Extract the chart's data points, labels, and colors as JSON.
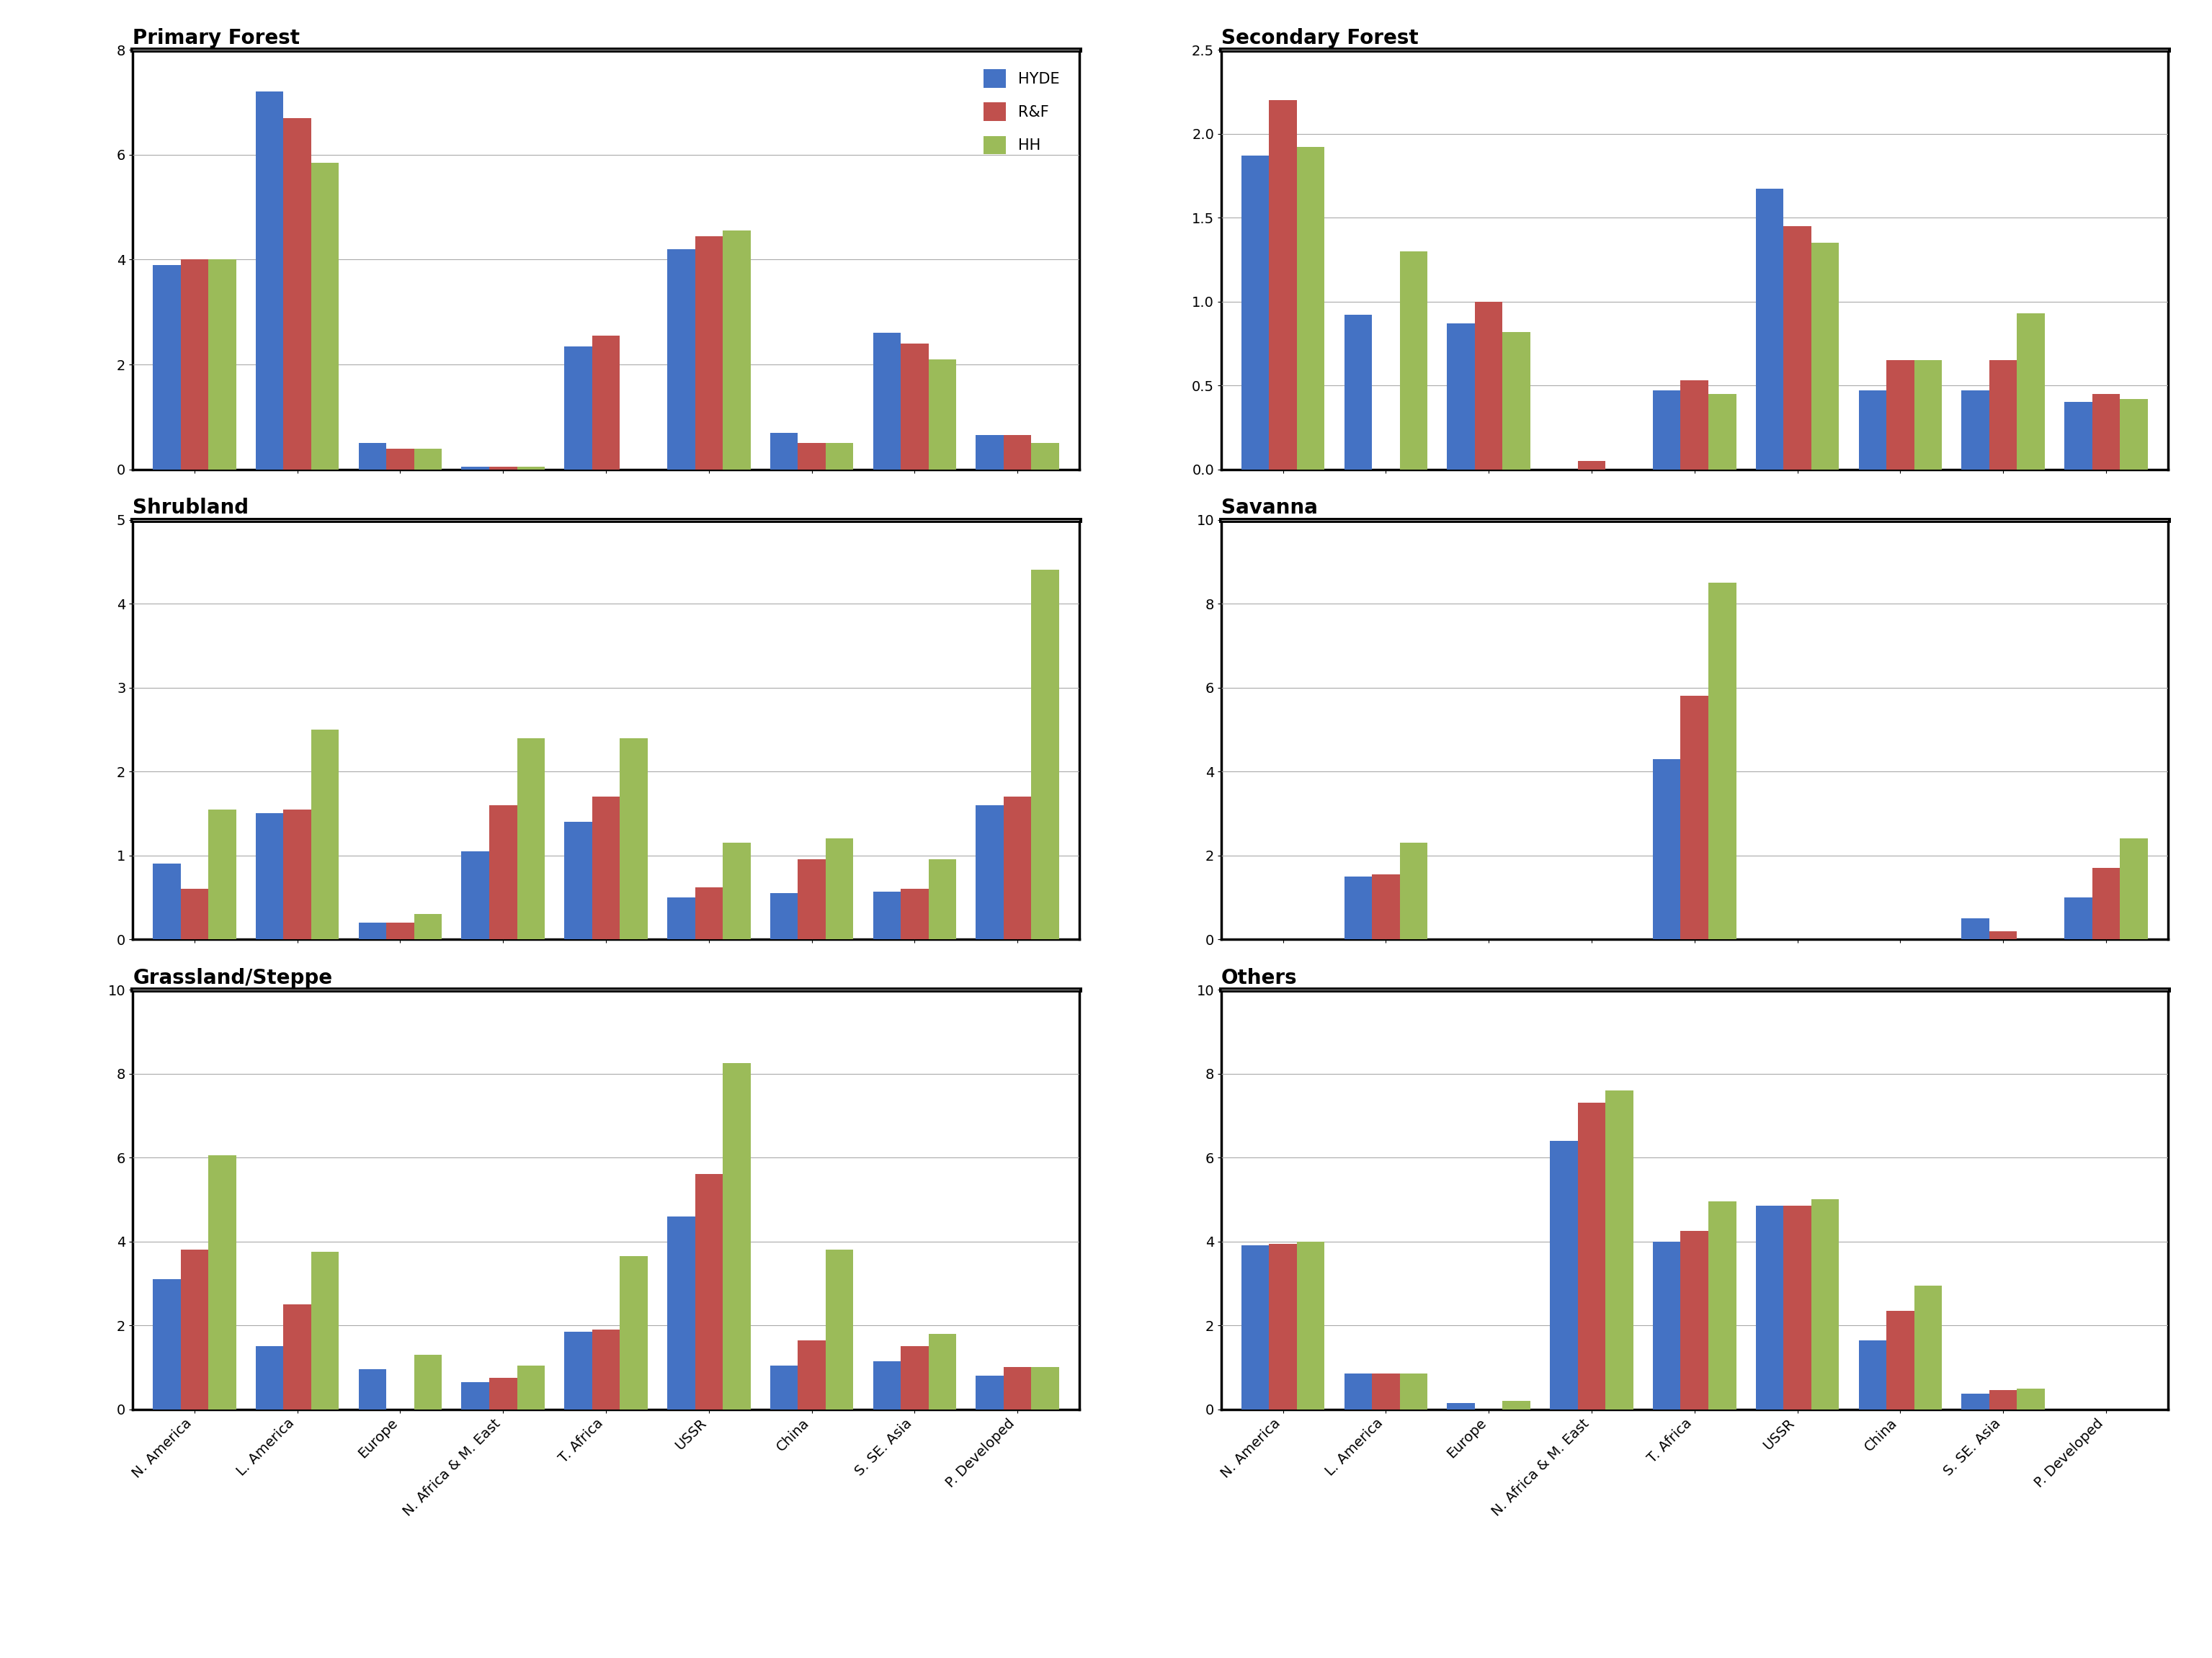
{
  "categories": [
    "N. America",
    "L. America",
    "Europe",
    "N. Africa & M. East",
    "T. Africa",
    "USSR",
    "China",
    "S. SE. Asia",
    "P. Developed"
  ],
  "legend_labels": [
    "HYDE",
    "R&F",
    "HH"
  ],
  "colors": [
    "#4472C4",
    "#C0504D",
    "#9BBB59"
  ],
  "subplots": [
    {
      "title": "Primary Forest",
      "ylim": [
        0,
        8
      ],
      "yticks": [
        0,
        2,
        4,
        6,
        8
      ],
      "show_xticks": false,
      "categories_used": 9,
      "data": {
        "HYDE": [
          3.9,
          7.2,
          0.5,
          0.05,
          2.35,
          4.2,
          0.7,
          2.6,
          0.65
        ],
        "R&F": [
          4.0,
          6.7,
          0.4,
          0.05,
          2.55,
          4.45,
          0.5,
          2.4,
          0.65
        ],
        "HH": [
          4.0,
          5.85,
          0.4,
          0.05,
          0.0,
          4.55,
          0.5,
          2.1,
          0.5
        ]
      }
    },
    {
      "title": "Secondary Forest",
      "ylim": [
        0,
        2.5
      ],
      "yticks": [
        0,
        0.5,
        1.0,
        1.5,
        2.0,
        2.5
      ],
      "show_xticks": false,
      "categories_used": 9,
      "data": {
        "HYDE": [
          1.87,
          0.92,
          0.87,
          0.0,
          0.47,
          1.67,
          0.47,
          0.47,
          0.4
        ],
        "R&F": [
          2.2,
          0.0,
          1.0,
          0.05,
          0.53,
          1.45,
          0.65,
          0.65,
          0.45
        ],
        "HH": [
          1.92,
          1.3,
          0.82,
          0.0,
          0.45,
          1.35,
          0.65,
          0.93,
          0.42
        ]
      }
    },
    {
      "title": "Shrubland",
      "ylim": [
        0,
        5
      ],
      "yticks": [
        0,
        1,
        2,
        3,
        4,
        5
      ],
      "show_xticks": false,
      "categories_used": 9,
      "data": {
        "HYDE": [
          0.9,
          1.5,
          0.2,
          1.05,
          1.4,
          0.5,
          0.55,
          0.57,
          1.6
        ],
        "R&F": [
          0.6,
          1.55,
          0.2,
          1.6,
          1.7,
          0.62,
          0.95,
          0.6,
          1.7
        ],
        "HH": [
          1.55,
          2.5,
          0.3,
          2.4,
          2.4,
          1.15,
          1.2,
          0.95,
          4.4
        ]
      }
    },
    {
      "title": "Savanna",
      "ylim": [
        0,
        10
      ],
      "yticks": [
        0,
        2,
        4,
        6,
        8,
        10
      ],
      "show_xticks": false,
      "categories_used": 9,
      "data": {
        "HYDE": [
          0.0,
          1.5,
          0.0,
          0.0,
          4.3,
          0.0,
          0.0,
          0.5,
          1.0
        ],
        "R&F": [
          0.0,
          1.55,
          0.0,
          0.0,
          5.8,
          0.0,
          0.0,
          0.2,
          1.7
        ],
        "HH": [
          0.0,
          2.3,
          0.0,
          0.0,
          8.5,
          0.0,
          0.0,
          0.0,
          2.4
        ]
      }
    },
    {
      "title": "Grassland/Steppe",
      "ylim": [
        0,
        10
      ],
      "yticks": [
        0,
        2,
        4,
        6,
        8,
        10
      ],
      "show_xticks": true,
      "categories_used": 9,
      "data": {
        "HYDE": [
          3.1,
          1.5,
          0.95,
          0.65,
          1.85,
          4.6,
          1.05,
          1.15,
          0.8
        ],
        "R&F": [
          3.8,
          2.5,
          0.0,
          0.75,
          1.9,
          5.6,
          1.65,
          1.5,
          1.0
        ],
        "HH": [
          6.05,
          3.75,
          1.3,
          1.05,
          3.65,
          8.25,
          3.8,
          1.8,
          1.0
        ]
      }
    },
    {
      "title": "Others",
      "ylim": [
        0,
        10
      ],
      "yticks": [
        0,
        2,
        4,
        6,
        8,
        10
      ],
      "show_xticks": true,
      "categories_used": 9,
      "data": {
        "HYDE": [
          3.9,
          0.85,
          0.15,
          6.4,
          4.0,
          4.85,
          1.65,
          0.38,
          0.0
        ],
        "R&F": [
          3.95,
          0.85,
          0.0,
          7.3,
          4.25,
          4.85,
          2.35,
          0.45,
          0.0
        ],
        "HH": [
          4.0,
          0.85,
          0.2,
          7.6,
          4.95,
          5.0,
          2.95,
          0.5,
          0.0
        ]
      }
    }
  ],
  "background_color": "#FFFFFF",
  "title_fontsize": 20,
  "tick_fontsize": 14,
  "label_fontsize": 15,
  "bar_width": 0.27
}
